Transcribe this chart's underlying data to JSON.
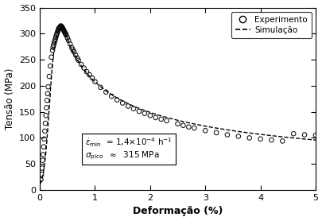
{
  "title": "",
  "xlabel": "Deformação (%)",
  "ylabel": "Tensão (MPa)",
  "xlim": [
    0,
    5
  ],
  "ylim": [
    0,
    350
  ],
  "xticks": [
    0,
    1,
    2,
    3,
    4,
    5
  ],
  "yticks": [
    0,
    50,
    100,
    150,
    200,
    250,
    300,
    350
  ],
  "legend_experiment": "Experimento",
  "legend_simulation": "Simulação",
  "plot_bg_color": "#ffffff",
  "line_color": "#000000",
  "marker_color": "#000000",
  "exp_x": [
    0.02,
    0.03,
    0.04,
    0.05,
    0.06,
    0.07,
    0.08,
    0.09,
    0.1,
    0.11,
    0.12,
    0.13,
    0.14,
    0.15,
    0.17,
    0.19,
    0.21,
    0.23,
    0.24,
    0.25,
    0.26,
    0.27,
    0.28,
    0.29,
    0.3,
    0.31,
    0.32,
    0.33,
    0.34,
    0.35,
    0.36,
    0.37,
    0.38,
    0.39,
    0.4,
    0.41,
    0.42,
    0.43,
    0.44,
    0.45,
    0.46,
    0.47,
    0.48,
    0.5,
    0.52,
    0.55,
    0.58,
    0.6,
    0.62,
    0.65,
    0.68,
    0.7,
    0.75,
    0.8,
    0.85,
    0.9,
    0.95,
    1.0,
    1.1,
    1.2,
    1.3,
    1.4,
    1.5,
    1.6,
    1.7,
    1.8,
    1.9,
    2.0,
    2.1,
    2.2,
    2.3,
    2.5,
    2.6,
    2.7,
    2.8,
    3.0,
    3.2,
    3.4,
    3.6,
    3.8,
    4.0,
    4.2,
    4.4,
    4.6,
    4.8,
    5.0
  ],
  "exp_y": [
    20,
    30,
    42,
    57,
    68,
    83,
    98,
    113,
    128,
    143,
    158,
    172,
    185,
    198,
    218,
    238,
    255,
    268,
    274,
    278,
    282,
    286,
    289,
    293,
    297,
    300,
    303,
    306,
    309,
    311,
    312,
    313,
    315,
    314,
    313,
    311,
    309,
    307,
    305,
    303,
    301,
    299,
    297,
    292,
    287,
    280,
    273,
    269,
    265,
    259,
    253,
    249,
    241,
    234,
    227,
    221,
    215,
    208,
    197,
    188,
    180,
    173,
    167,
    161,
    156,
    151,
    147,
    143,
    139,
    136,
    133,
    127,
    124,
    121,
    119,
    114,
    110,
    106,
    103,
    100,
    98,
    96,
    94,
    108,
    106,
    105
  ],
  "sim_rise_k": 20.0,
  "sim_rise_x0": 0.17,
  "sim_peak": 315.0,
  "sim_peak_x": 0.42,
  "sim_decay_A": 315.0,
  "sim_decay_alpha": 0.42,
  "sim_decay_n": 0.48
}
